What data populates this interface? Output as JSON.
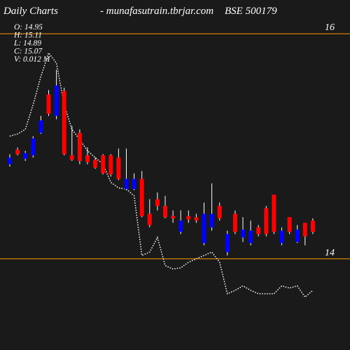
{
  "chart_data": {
    "type": "candlestick",
    "title": "Daily Charts",
    "source": "- munafasutrain.tbrjar.com",
    "symbol": "BSE 500179",
    "info": [
      "O: 14.95",
      "H: 15.11",
      "L: 14.89",
      "C: 15.07",
      "V: 0.012  M"
    ],
    "open": [
      14.9,
      14.93,
      14.94,
      15.07,
      15.23,
      15.29,
      15.54,
      14.93,
      14.88,
      14.87,
      14.86,
      14.81,
      14.76,
      14.75,
      14.71,
      14.71,
      14.71,
      14.38,
      14.3,
      14.47,
      14.37,
      14.36,
      14.34,
      14.35,
      14.34,
      14.4,
      14.4,
      14.36,
      14.22,
      14.24,
      14.26,
      14.25,
      14.22,
      14.22,
      14.24,
      14.25,
      14.24,
      14.26,
      14.2,
      14.24
    ],
    "high": [
      14.93,
      14.99,
      14.96,
      15.09,
      15.27,
      15.5,
      15.68,
      15.52,
      15.18,
      15.15,
      14.99,
      14.9,
      14.93,
      14.93,
      14.98,
      14.98,
      14.76,
      14.78,
      14.53,
      14.59,
      14.56,
      14.43,
      14.43,
      14.43,
      14.4,
      14.5,
      14.67,
      14.5,
      14.25,
      14.43,
      14.37,
      14.34,
      14.3,
      14.47,
      14.57,
      14.28,
      14.37,
      14.3,
      14.32,
      14.36
    ],
    "low": [
      14.82,
      14.92,
      14.87,
      14.9,
      15.11,
      15.27,
      15.24,
      14.92,
      14.87,
      14.84,
      14.84,
      14.8,
      14.75,
      14.73,
      14.7,
      14.61,
      14.61,
      14.37,
      14.28,
      14.43,
      14.36,
      14.32,
      14.22,
      14.32,
      14.32,
      14.12,
      14.25,
      14.34,
      14.03,
      14.22,
      14.15,
      14.12,
      14.2,
      14.2,
      14.22,
      14.12,
      14.22,
      14.14,
      14.12,
      14.22
    ],
    "close": [
      14.84,
      14.97,
      14.89,
      14.92,
      15.12,
      15.46,
      15.27,
      15.49,
      14.92,
      15.12,
      14.92,
      14.88,
      14.92,
      14.92,
      14.9,
      14.62,
      14.62,
      14.71,
      14.4,
      14.53,
      14.47,
      14.38,
      14.24,
      14.38,
      14.37,
      14.14,
      14.28,
      14.47,
      14.06,
      14.4,
      14.19,
      14.14,
      14.28,
      14.45,
      14.57,
      14.14,
      14.37,
      14.15,
      14.32,
      14.34
    ],
    "up_color": "#ff0000",
    "down_color": "#0000ff",
    "line": {
      "color": "#ffffff",
      "values": [
        15.09,
        15.11,
        15.15,
        15.37,
        15.62,
        15.83,
        15.74,
        15.37,
        15.15,
        15.06,
        14.96,
        14.9,
        14.84,
        14.68,
        14.63,
        14.62,
        14.56,
        14.03,
        14.06,
        14.19,
        13.94,
        13.91,
        13.92,
        13.97,
        14.0,
        14.03,
        14.06,
        13.97,
        13.69,
        13.72,
        13.76,
        13.72,
        13.69,
        13.69,
        13.69,
        13.76,
        13.74,
        13.76,
        13.66,
        13.72
      ]
    },
    "ylim": [
      13.19,
      16.3
    ],
    "yticks": [
      14,
      16
    ],
    "tick_line_color": "#ff9900"
  }
}
